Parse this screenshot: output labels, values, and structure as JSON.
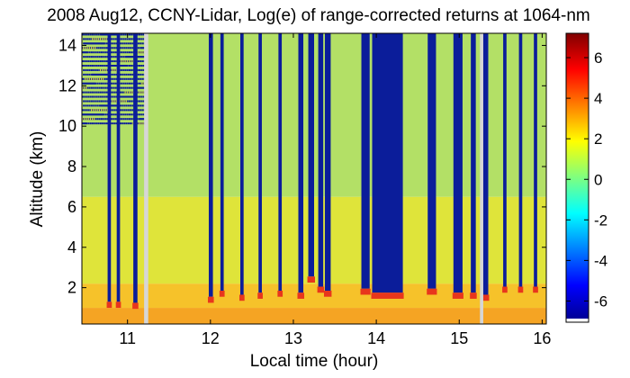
{
  "chart_data": {
    "type": "heatmap",
    "title": "2008 Aug12, CCNY-Lidar, Log(e) of range-corrected returns at 1064-nm",
    "xlabel": "Local time (hour)",
    "ylabel": "Altitude (km)",
    "xlim": [
      10.45,
      16.05
    ],
    "ylim": [
      0.2,
      14.6
    ],
    "x_ticks": [
      11,
      12,
      13,
      14,
      15,
      16
    ],
    "x_tick_labels": [
      "11",
      "12",
      "13",
      "14",
      "15",
      "16"
    ],
    "y_ticks": [
      2,
      4,
      6,
      8,
      10,
      12,
      14
    ],
    "y_tick_labels": [
      "2",
      "4",
      "6",
      "8",
      "10",
      "12",
      "14"
    ],
    "colorbar": {
      "range": [
        -7,
        7.2
      ],
      "ticks": [
        -6,
        -4,
        -2,
        0,
        2,
        4,
        6
      ],
      "tick_labels": [
        "-6",
        "-4",
        "-2",
        "0",
        "2",
        "4",
        "6"
      ],
      "colormap": "jet"
    },
    "background_colors": {
      "lower_aerosol_layer": "#f5a423",
      "boundary_layer": "#f6c22a",
      "mid_altitude": "#dfe43a",
      "upper_altitude": "#b3e066",
      "cloud_top_layer": "#e8361c",
      "attenuated_signal": "#0b1d9a",
      "data_gap": "#d6d6d6"
    },
    "cloud_columns": [
      {
        "start": 10.76,
        "end": 10.8,
        "cloud_base_km": 1.15
      },
      {
        "start": 10.87,
        "end": 10.91,
        "cloud_base_km": 1.15
      },
      {
        "start": 11.07,
        "end": 11.12,
        "cloud_base_km": 1.1
      },
      {
        "start": 11.98,
        "end": 12.03,
        "cloud_base_km": 1.4
      },
      {
        "start": 12.12,
        "end": 12.16,
        "cloud_base_km": 1.7
      },
      {
        "start": 12.36,
        "end": 12.4,
        "cloud_base_km": 1.5
      },
      {
        "start": 12.58,
        "end": 12.62,
        "cloud_base_km": 1.6
      },
      {
        "start": 12.82,
        "end": 12.86,
        "cloud_base_km": 1.7
      },
      {
        "start": 13.06,
        "end": 13.12,
        "cloud_base_km": 1.6
      },
      {
        "start": 13.18,
        "end": 13.25,
        "cloud_base_km": 2.4
      },
      {
        "start": 13.3,
        "end": 13.36,
        "cloud_base_km": 1.9
      },
      {
        "start": 13.38,
        "end": 13.45,
        "cloud_base_km": 1.7
      },
      {
        "start": 13.82,
        "end": 13.92,
        "cloud_base_km": 1.8
      },
      {
        "start": 13.95,
        "end": 14.32,
        "cloud_base_km": 1.6
      },
      {
        "start": 14.62,
        "end": 14.72,
        "cloud_base_km": 1.8
      },
      {
        "start": 14.93,
        "end": 15.04,
        "cloud_base_km": 1.6
      },
      {
        "start": 15.14,
        "end": 15.2,
        "cloud_base_km": 1.6
      },
      {
        "start": 15.28,
        "end": 15.35,
        "cloud_base_km": 1.5
      },
      {
        "start": 15.53,
        "end": 15.57,
        "cloud_base_km": 1.9
      },
      {
        "start": 15.72,
        "end": 15.76,
        "cloud_base_km": 1.9
      },
      {
        "start": 15.9,
        "end": 15.94,
        "cloud_base_km": 1.9
      }
    ],
    "data_gaps": [
      {
        "start": 11.2,
        "end": 11.25
      },
      {
        "start": 15.25,
        "end": 15.29
      }
    ],
    "noisy_region": {
      "start": 10.45,
      "end": 11.2,
      "from_altitude_km": 10
    }
  }
}
